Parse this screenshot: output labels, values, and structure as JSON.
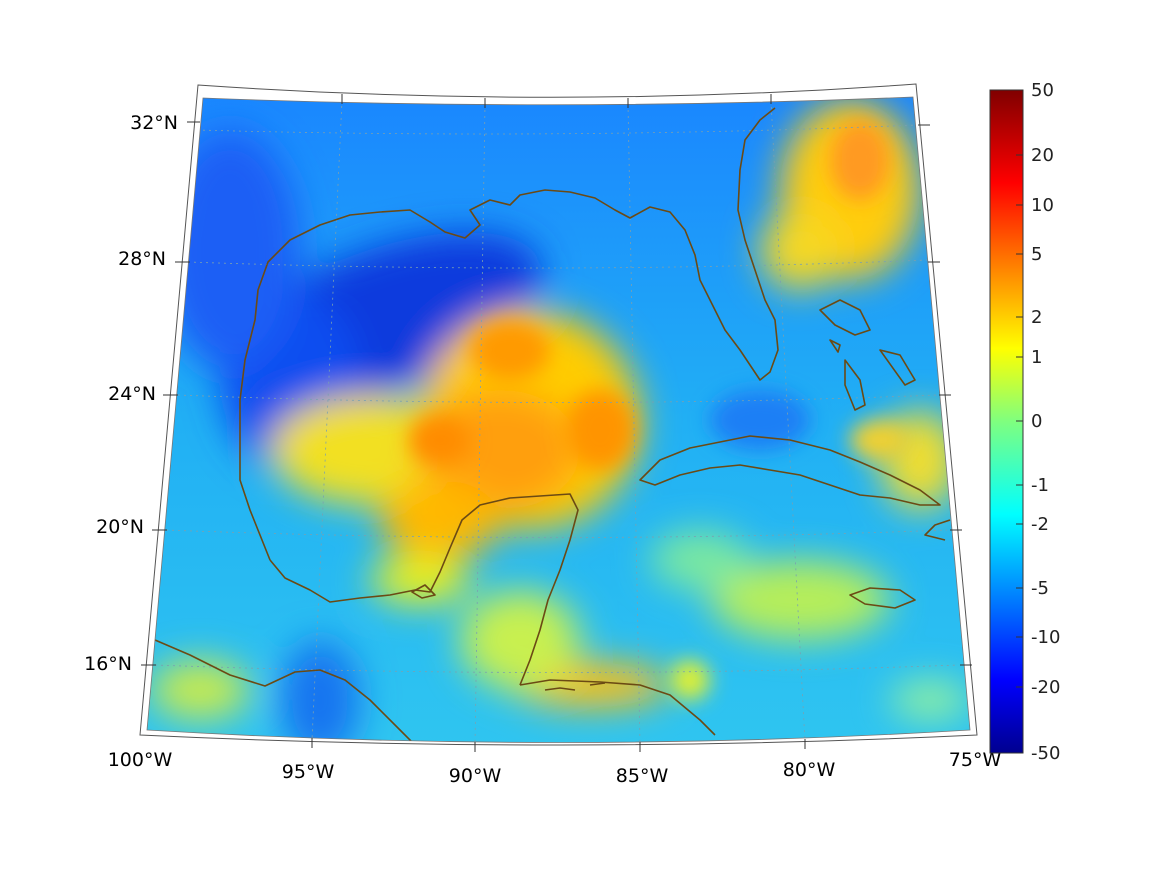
{
  "map": {
    "projection": "conic",
    "extent": {
      "lon_min": -100,
      "lon_max": -75,
      "lat_min": 14,
      "lat_max": 33
    },
    "longitude_labels": [
      "100°W",
      "95°W",
      "90°W",
      "85°W",
      "80°W",
      "75°W"
    ],
    "latitude_labels": [
      "32°N",
      "28°N",
      "24°N",
      "20°N",
      "16°N"
    ],
    "coastline_color": "#6b4a14",
    "grid": "dotted"
  },
  "colorbar": {
    "colormap": "jet",
    "tick_labels": [
      "50",
      "20",
      "10",
      "5",
      "2",
      "1",
      "0",
      "-1",
      "-2",
      "-5",
      "-10",
      "-20",
      "-50"
    ]
  }
}
